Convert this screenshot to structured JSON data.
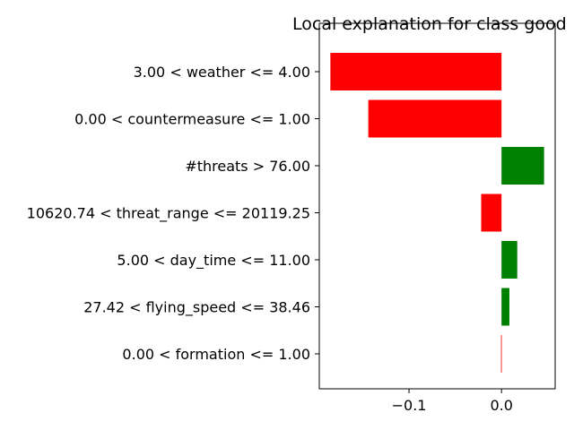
{
  "chart_data": {
    "type": "bar",
    "orientation": "horizontal",
    "title": "Local explanation for class good",
    "xlabel": "",
    "ylabel": "",
    "xlim": [
      -0.197,
      0.058
    ],
    "grid": false,
    "categories": [
      "3.00 < weather <= 4.00",
      "0.00 < countermeasure <= 1.00",
      "#threats > 76.00",
      "10620.74 < threat_range <= 20119.25",
      "5.00 < day_time <= 11.00",
      "27.42 < flying_speed <= 38.46",
      "0.00 < formation <= 1.00"
    ],
    "values": [
      -0.185,
      -0.144,
      0.046,
      -0.022,
      0.017,
      0.0085,
      -0.0005
    ],
    "x_ticks": [
      {
        "value": -0.1,
        "label": "−0.1"
      },
      {
        "value": 0.0,
        "label": "0.0"
      }
    ],
    "colors": {
      "positive": "#008000",
      "negative": "#ff0000"
    }
  }
}
